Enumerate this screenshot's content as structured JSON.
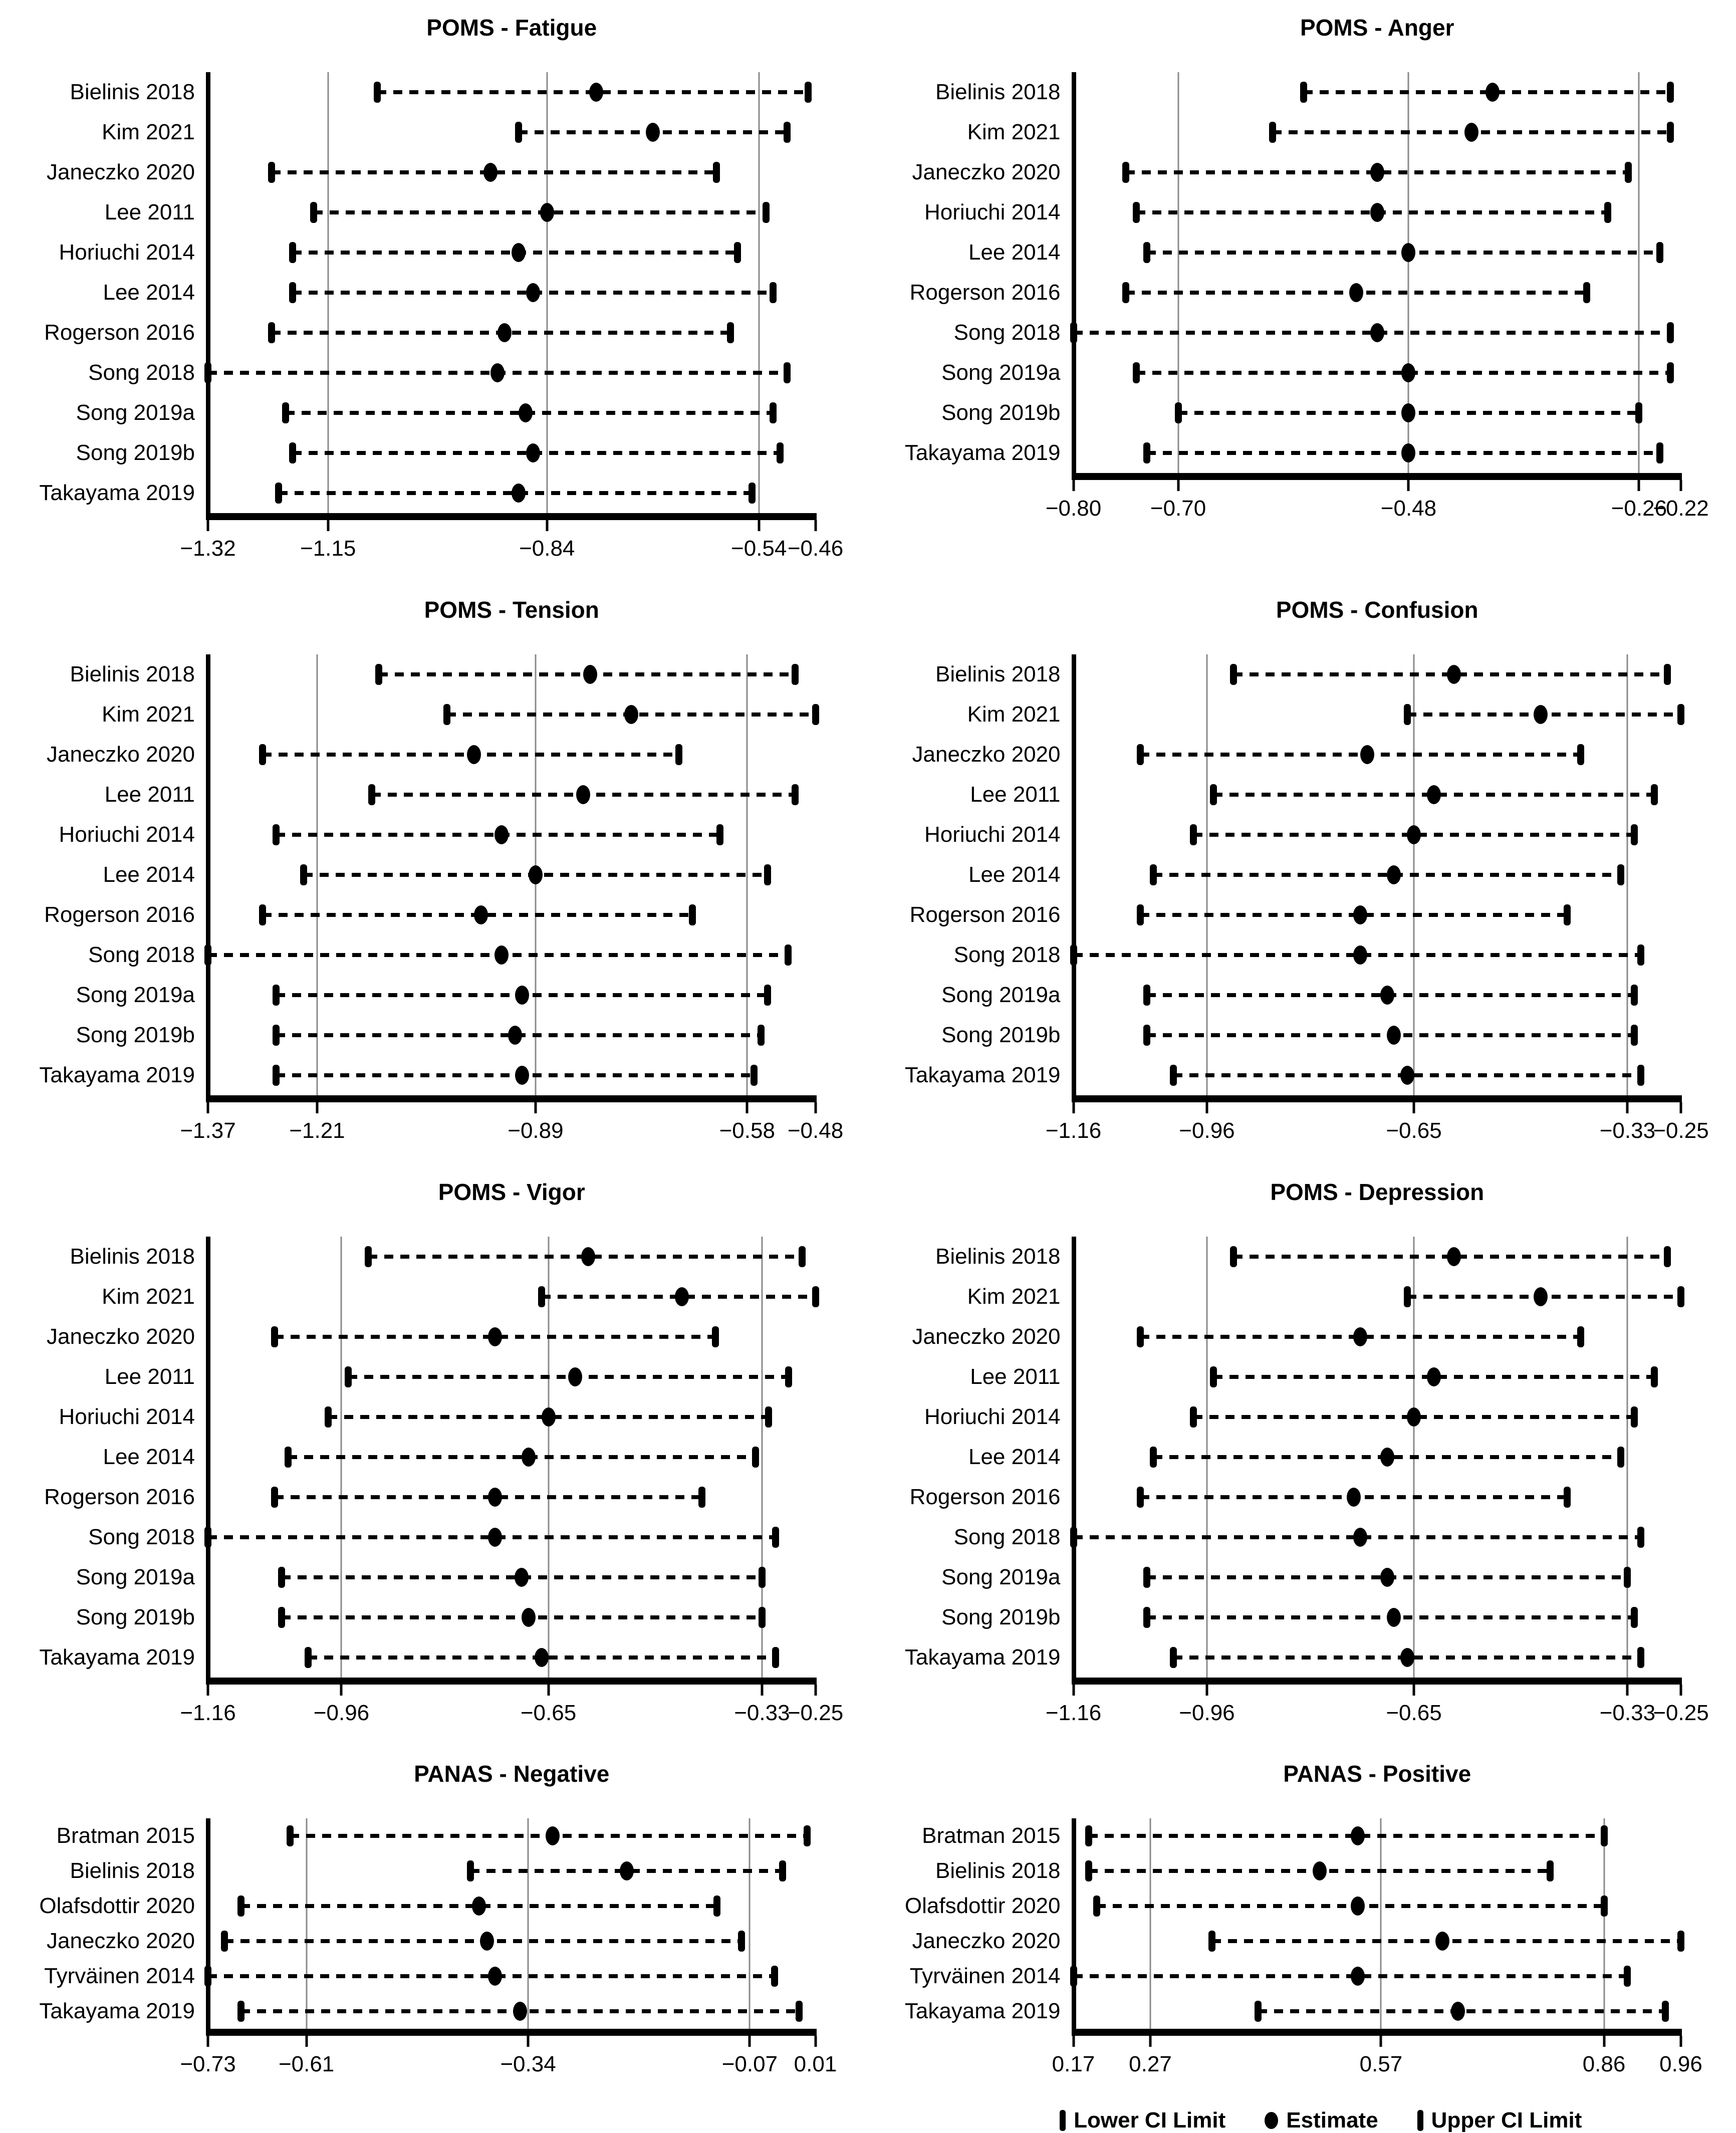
{
  "figure": {
    "background_color": "#ffffff",
    "text_color": "#000000",
    "gridline_color": "#8a8a8a",
    "marker_color": "#000000",
    "legend": {
      "items": [
        {
          "marker": "lower-ci-tick",
          "label": "Lower CI Limit"
        },
        {
          "marker": "estimate-dot",
          "label": "Estimate"
        },
        {
          "marker": "upper-ci-tick",
          "label": "Upper CI Limit"
        }
      ]
    }
  },
  "chart_data": [
    {
      "type": "forest",
      "title": "POMS - Fatigue",
      "xlim": [
        -1.32,
        -0.46
      ],
      "x_ticks": [
        -1.32,
        -1.15,
        -0.84,
        -0.54,
        -0.46
      ],
      "x_tick_labels": [
        "−1.32",
        "−1.15",
        "−0.84",
        "−0.54",
        "−0.46"
      ],
      "gridlines": [
        -1.15,
        -0.84,
        -0.54
      ],
      "studies": [
        {
          "label": "Bielinis 2018",
          "lower": -1.08,
          "estimate": -0.77,
          "upper": -0.47
        },
        {
          "label": "Kim 2021",
          "lower": -0.88,
          "estimate": -0.69,
          "upper": -0.5
        },
        {
          "label": "Janeczko 2020",
          "lower": -1.23,
          "estimate": -0.92,
          "upper": -0.6
        },
        {
          "label": "Lee 2011",
          "lower": -1.17,
          "estimate": -0.84,
          "upper": -0.53
        },
        {
          "label": "Horiuchi 2014",
          "lower": -1.2,
          "estimate": -0.88,
          "upper": -0.57
        },
        {
          "label": "Lee 2014",
          "lower": -1.2,
          "estimate": -0.86,
          "upper": -0.52
        },
        {
          "label": "Rogerson 2016",
          "lower": -1.23,
          "estimate": -0.9,
          "upper": -0.58
        },
        {
          "label": "Song 2018",
          "lower": -1.32,
          "estimate": -0.91,
          "upper": -0.5
        },
        {
          "label": "Song 2019a",
          "lower": -1.21,
          "estimate": -0.87,
          "upper": -0.52
        },
        {
          "label": "Song 2019b",
          "lower": -1.2,
          "estimate": -0.86,
          "upper": -0.51
        },
        {
          "label": "Takayama 2019",
          "lower": -1.22,
          "estimate": -0.88,
          "upper": -0.55
        }
      ]
    },
    {
      "type": "forest",
      "title": "POMS - Anger",
      "xlim": [
        -0.8,
        -0.22
      ],
      "x_ticks": [
        -0.8,
        -0.7,
        -0.48,
        -0.26,
        -0.22
      ],
      "x_tick_labels": [
        "−0.80",
        "−0.70",
        "−0.48",
        "−0.26",
        "−0.22"
      ],
      "gridlines": [
        -0.7,
        -0.48,
        -0.26
      ],
      "studies": [
        {
          "label": "Bielinis 2018",
          "lower": -0.58,
          "estimate": -0.4,
          "upper": -0.23
        },
        {
          "label": "Kim 2021",
          "lower": -0.61,
          "estimate": -0.42,
          "upper": -0.23
        },
        {
          "label": "Janeczko 2020",
          "lower": -0.75,
          "estimate": -0.51,
          "upper": -0.27
        },
        {
          "label": "Horiuchi 2014",
          "lower": -0.74,
          "estimate": -0.51,
          "upper": -0.29
        },
        {
          "label": "Lee 2014",
          "lower": -0.73,
          "estimate": -0.48,
          "upper": -0.24
        },
        {
          "label": "Rogerson 2016",
          "lower": -0.75,
          "estimate": -0.53,
          "upper": -0.31
        },
        {
          "label": "Song 2018",
          "lower": -0.8,
          "estimate": -0.51,
          "upper": -0.23
        },
        {
          "label": "Song 2019a",
          "lower": -0.74,
          "estimate": -0.48,
          "upper": -0.23
        },
        {
          "label": "Song 2019b",
          "lower": -0.7,
          "estimate": -0.48,
          "upper": -0.26
        },
        {
          "label": "Takayama 2019",
          "lower": -0.73,
          "estimate": -0.48,
          "upper": -0.24
        }
      ]
    },
    {
      "type": "forest",
      "title": "POMS - Tension",
      "xlim": [
        -1.37,
        -0.48
      ],
      "x_ticks": [
        -1.37,
        -1.21,
        -0.89,
        -0.58,
        -0.48
      ],
      "x_tick_labels": [
        "−1.37",
        "−1.21",
        "−0.89",
        "−0.58",
        "−0.48"
      ],
      "gridlines": [
        -1.21,
        -0.89,
        -0.58
      ],
      "studies": [
        {
          "label": "Bielinis 2018",
          "lower": -1.12,
          "estimate": -0.81,
          "upper": -0.51
        },
        {
          "label": "Kim 2021",
          "lower": -1.02,
          "estimate": -0.75,
          "upper": -0.48
        },
        {
          "label": "Janeczko 2020",
          "lower": -1.29,
          "estimate": -0.98,
          "upper": -0.68
        },
        {
          "label": "Lee 2011",
          "lower": -1.13,
          "estimate": -0.82,
          "upper": -0.51
        },
        {
          "label": "Horiuchi 2014",
          "lower": -1.27,
          "estimate": -0.94,
          "upper": -0.62
        },
        {
          "label": "Lee 2014",
          "lower": -1.23,
          "estimate": -0.89,
          "upper": -0.55
        },
        {
          "label": "Rogerson 2016",
          "lower": -1.29,
          "estimate": -0.97,
          "upper": -0.66
        },
        {
          "label": "Song 2018",
          "lower": -1.37,
          "estimate": -0.94,
          "upper": -0.52
        },
        {
          "label": "Song 2019a",
          "lower": -1.27,
          "estimate": -0.91,
          "upper": -0.55
        },
        {
          "label": "Song 2019b",
          "lower": -1.27,
          "estimate": -0.92,
          "upper": -0.56
        },
        {
          "label": "Takayama 2019",
          "lower": -1.27,
          "estimate": -0.91,
          "upper": -0.57
        }
      ]
    },
    {
      "type": "forest",
      "title": "POMS - Confusion",
      "xlim": [
        -1.16,
        -0.25
      ],
      "x_ticks": [
        -1.16,
        -0.96,
        -0.65,
        -0.33,
        -0.25
      ],
      "x_tick_labels": [
        "−1.16",
        "−0.96",
        "−0.65",
        "−0.33",
        "−0.25"
      ],
      "gridlines": [
        -0.96,
        -0.65,
        -0.33
      ],
      "studies": [
        {
          "label": "Bielinis 2018",
          "lower": -0.92,
          "estimate": -0.59,
          "upper": -0.27
        },
        {
          "label": "Kim 2021",
          "lower": -0.66,
          "estimate": -0.46,
          "upper": -0.25
        },
        {
          "label": "Janeczko 2020",
          "lower": -1.06,
          "estimate": -0.72,
          "upper": -0.4
        },
        {
          "label": "Lee 2011",
          "lower": -0.95,
          "estimate": -0.62,
          "upper": -0.29
        },
        {
          "label": "Horiuchi 2014",
          "lower": -0.98,
          "estimate": -0.65,
          "upper": -0.32
        },
        {
          "label": "Lee 2014",
          "lower": -1.04,
          "estimate": -0.68,
          "upper": -0.34
        },
        {
          "label": "Rogerson 2016",
          "lower": -1.06,
          "estimate": -0.73,
          "upper": -0.42
        },
        {
          "label": "Song 2018",
          "lower": -1.16,
          "estimate": -0.73,
          "upper": -0.31
        },
        {
          "label": "Song 2019a",
          "lower": -1.05,
          "estimate": -0.69,
          "upper": -0.32
        },
        {
          "label": "Song 2019b",
          "lower": -1.05,
          "estimate": -0.68,
          "upper": -0.32
        },
        {
          "label": "Takayama 2019",
          "lower": -1.01,
          "estimate": -0.66,
          "upper": -0.31
        }
      ]
    },
    {
      "type": "forest",
      "title": "POMS - Vigor",
      "xlim": [
        -1.16,
        -0.25
      ],
      "x_ticks": [
        -1.16,
        -0.96,
        -0.65,
        -0.33,
        -0.25
      ],
      "x_tick_labels": [
        "−1.16",
        "−0.96",
        "−0.65",
        "−0.33",
        "−0.25"
      ],
      "gridlines": [
        -0.96,
        -0.65,
        -0.33
      ],
      "studies": [
        {
          "label": "Bielinis 2018",
          "lower": -0.92,
          "estimate": -0.59,
          "upper": -0.27
        },
        {
          "label": "Kim 2021",
          "lower": -0.66,
          "estimate": -0.45,
          "upper": -0.25
        },
        {
          "label": "Janeczko 2020",
          "lower": -1.06,
          "estimate": -0.73,
          "upper": -0.4
        },
        {
          "label": "Lee 2011",
          "lower": -0.95,
          "estimate": -0.61,
          "upper": -0.29
        },
        {
          "label": "Horiuchi 2014",
          "lower": -0.98,
          "estimate": -0.65,
          "upper": -0.32
        },
        {
          "label": "Lee 2014",
          "lower": -1.04,
          "estimate": -0.68,
          "upper": -0.34
        },
        {
          "label": "Rogerson 2016",
          "lower": -1.06,
          "estimate": -0.73,
          "upper": -0.42
        },
        {
          "label": "Song 2018",
          "lower": -1.16,
          "estimate": -0.73,
          "upper": -0.31
        },
        {
          "label": "Song 2019a",
          "lower": -1.05,
          "estimate": -0.69,
          "upper": -0.33
        },
        {
          "label": "Song 2019b",
          "lower": -1.05,
          "estimate": -0.68,
          "upper": -0.33
        },
        {
          "label": "Takayama 2019",
          "lower": -1.01,
          "estimate": -0.66,
          "upper": -0.31
        }
      ]
    },
    {
      "type": "forest",
      "title": "POMS - Depression",
      "xlim": [
        -1.16,
        -0.25
      ],
      "x_ticks": [
        -1.16,
        -0.96,
        -0.65,
        -0.33,
        -0.25
      ],
      "x_tick_labels": [
        "−1.16",
        "−0.96",
        "−0.65",
        "−0.33",
        "−0.25"
      ],
      "gridlines": [
        -0.96,
        -0.65,
        -0.33
      ],
      "studies": [
        {
          "label": "Bielinis 2018",
          "lower": -0.92,
          "estimate": -0.59,
          "upper": -0.27
        },
        {
          "label": "Kim 2021",
          "lower": -0.66,
          "estimate": -0.46,
          "upper": -0.25
        },
        {
          "label": "Janeczko 2020",
          "lower": -1.06,
          "estimate": -0.73,
          "upper": -0.4
        },
        {
          "label": "Lee 2011",
          "lower": -0.95,
          "estimate": -0.62,
          "upper": -0.29
        },
        {
          "label": "Horiuchi 2014",
          "lower": -0.98,
          "estimate": -0.65,
          "upper": -0.32
        },
        {
          "label": "Lee 2014",
          "lower": -1.04,
          "estimate": -0.69,
          "upper": -0.34
        },
        {
          "label": "Rogerson 2016",
          "lower": -1.06,
          "estimate": -0.74,
          "upper": -0.42
        },
        {
          "label": "Song 2018",
          "lower": -1.16,
          "estimate": -0.73,
          "upper": -0.31
        },
        {
          "label": "Song 2019a",
          "lower": -1.05,
          "estimate": -0.69,
          "upper": -0.33
        },
        {
          "label": "Song 2019b",
          "lower": -1.05,
          "estimate": -0.68,
          "upper": -0.32
        },
        {
          "label": "Takayama 2019",
          "lower": -1.01,
          "estimate": -0.66,
          "upper": -0.31
        }
      ]
    },
    {
      "type": "forest",
      "title": "PANAS - Negative",
      "xlim": [
        -0.73,
        0.01
      ],
      "x_ticks": [
        -0.73,
        -0.61,
        -0.34,
        -0.07,
        0.01
      ],
      "x_tick_labels": [
        "−0.73",
        "−0.61",
        "−0.34",
        "−0.07",
        "0.01"
      ],
      "gridlines": [
        -0.61,
        -0.34,
        -0.07
      ],
      "studies": [
        {
          "label": "Bratman 2015",
          "lower": -0.63,
          "estimate": -0.31,
          "upper": 0.0
        },
        {
          "label": "Bielinis 2018",
          "lower": -0.41,
          "estimate": -0.22,
          "upper": -0.03
        },
        {
          "label": "Olafsdottir 2020",
          "lower": -0.69,
          "estimate": -0.4,
          "upper": -0.11
        },
        {
          "label": "Janeczko 2020",
          "lower": -0.71,
          "estimate": -0.39,
          "upper": -0.08
        },
        {
          "label": "Tyrväinen 2014",
          "lower": -0.73,
          "estimate": -0.38,
          "upper": -0.04
        },
        {
          "label": "Takayama 2019",
          "lower": -0.69,
          "estimate": -0.35,
          "upper": -0.01
        }
      ]
    },
    {
      "type": "forest",
      "title": "PANAS - Positive",
      "xlim": [
        0.17,
        0.96
      ],
      "x_ticks": [
        0.17,
        0.27,
        0.57,
        0.86,
        0.96
      ],
      "x_tick_labels": [
        "0.17",
        "0.27",
        "0.57",
        "0.86",
        "0.96"
      ],
      "gridlines": [
        0.27,
        0.57,
        0.86
      ],
      "studies": [
        {
          "label": "Bratman 2015",
          "lower": 0.19,
          "estimate": 0.54,
          "upper": 0.86
        },
        {
          "label": "Bielinis 2018",
          "lower": 0.19,
          "estimate": 0.49,
          "upper": 0.79
        },
        {
          "label": "Olafsdottir 2020",
          "lower": 0.2,
          "estimate": 0.54,
          "upper": 0.86
        },
        {
          "label": "Janeczko 2020",
          "lower": 0.35,
          "estimate": 0.65,
          "upper": 0.96
        },
        {
          "label": "Tyrväinen 2014",
          "lower": 0.17,
          "estimate": 0.54,
          "upper": 0.89
        },
        {
          "label": "Takayama 2019",
          "lower": 0.41,
          "estimate": 0.67,
          "upper": 0.94
        }
      ]
    }
  ]
}
